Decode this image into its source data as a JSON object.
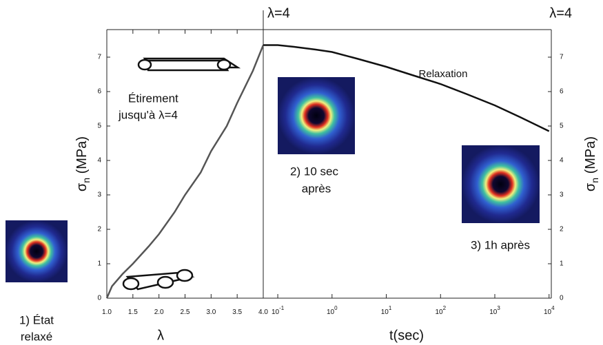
{
  "chart_data": [
    {
      "type": "line",
      "xlabel": "λ",
      "ylabel": {
        "symbol": "σ",
        "subscript": "n",
        "unit": "(MPa)"
      },
      "annotations": [
        "Étirement",
        "jusqu'à λ=4",
        "1) État",
        "relaxé"
      ],
      "x": [
        1.0,
        1.1,
        1.3,
        1.5,
        1.8,
        2.0,
        2.3,
        2.5,
        2.8,
        3.0,
        3.3,
        3.5,
        3.8,
        4.0
      ],
      "series": [
        {
          "color": "#555555",
          "values": [
            0,
            0.35,
            0.7,
            1.0,
            1.5,
            1.86,
            2.5,
            3.0,
            3.65,
            4.27,
            5.0,
            5.67,
            6.6,
            7.35
          ]
        }
      ],
      "xlim": [
        1.0,
        4.0
      ],
      "xticks": [
        {
          "value": 1.0,
          "label": "1.0"
        },
        {
          "value": 1.5,
          "label": "1.5"
        },
        {
          "value": 2.0,
          "label": "2.0"
        },
        {
          "value": 2.5,
          "label": "2.5"
        },
        {
          "value": 3.0,
          "label": "3.0"
        },
        {
          "value": 3.5,
          "label": "3.5"
        },
        {
          "value": 4.0,
          "label": "4.0"
        }
      ],
      "ylim": [
        0,
        7.8
      ],
      "yticks": [
        0,
        1,
        2,
        3,
        4,
        5,
        6,
        7
      ],
      "top_label": "λ=4"
    },
    {
      "type": "line",
      "xscale": "log",
      "yaxis_side": "right",
      "xlabel": "t(sec)",
      "ylabel": {
        "symbol": "σ",
        "subscript": "n",
        "unit": "(MPa)"
      },
      "annotations": [
        "Relaxation",
        "2) 10 sec",
        "après",
        "3) 1h après"
      ],
      "x": [
        0.054,
        0.1,
        0.2,
        0.5,
        1,
        3,
        10,
        30,
        100,
        300,
        1000,
        3000,
        10000
      ],
      "series": [
        {
          "color": "#111111",
          "values": [
            7.35,
            7.35,
            7.3,
            7.22,
            7.15,
            6.95,
            6.72,
            6.48,
            6.22,
            5.93,
            5.6,
            5.25,
            4.85
          ]
        }
      ],
      "xlim": [
        0.054,
        11000
      ],
      "xticks": [
        {
          "value": 0.1,
          "label": "10",
          "exponent": "-1"
        },
        {
          "value": 1,
          "label": "10",
          "exponent": "0"
        },
        {
          "value": 10,
          "label": "10",
          "exponent": "1"
        },
        {
          "value": 100,
          "label": "10",
          "exponent": "2"
        },
        {
          "value": 1000,
          "label": "10",
          "exponent": "3"
        },
        {
          "value": 10000,
          "label": "10",
          "exponent": "4"
        }
      ],
      "ylim": [
        0,
        7.8
      ],
      "yticks": [
        0,
        1,
        2,
        3,
        4,
        5,
        6,
        7
      ],
      "top_label": "λ=4"
    }
  ]
}
